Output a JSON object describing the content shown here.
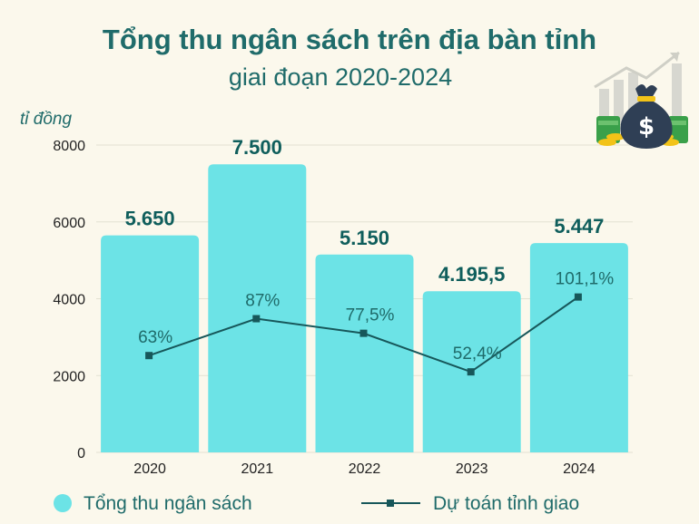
{
  "chart_data": {
    "type": "bar",
    "title": "Tổng thu ngân sách trên địa bàn tỉnh",
    "subtitle": "giai đoạn 2020-2024",
    "ylabel": "tỉ đồng",
    "ylim": [
      0,
      8000
    ],
    "yticks": [
      "0",
      "2000",
      "4000",
      "6000",
      "8000"
    ],
    "categories": [
      "2020",
      "2021",
      "2022",
      "2023",
      "2024"
    ],
    "series": [
      {
        "name": "Tổng thu ngân sách",
        "type": "bar",
        "color": "#6ce3e6",
        "values": [
          5650,
          7500,
          5150,
          4195.5,
          5447
        ],
        "labels": [
          "5.650",
          "7.500",
          "5.150",
          "4.195,5",
          "5.447"
        ]
      },
      {
        "name": "Dự toán tỉnh giao",
        "type": "line",
        "color": "#17575a",
        "values": [
          63,
          87,
          77.5,
          52.4,
          101.1
        ],
        "labels": [
          "63%",
          "87%",
          "77,5%",
          "52,4%",
          "101,1%"
        ]
      }
    ],
    "grid": true,
    "legend": "bottom"
  },
  "decoration": {
    "icon": "money-bag-icon"
  }
}
